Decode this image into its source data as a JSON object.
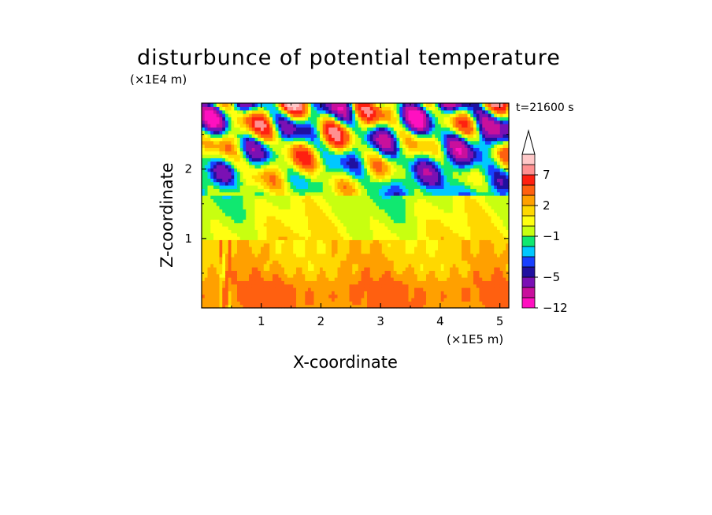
{
  "chart_data": {
    "type": "heatmap",
    "title": "disturbunce of potential temperature",
    "xlabel": "X-coordinate",
    "ylabel": "Z-coordinate",
    "x_unit": "(×1E5 m)",
    "y_unit": "(×1E4 m)",
    "annotation": "t=21600 s",
    "xlim": [
      0,
      5.15
    ],
    "ylim": [
      0,
      2.95
    ],
    "x_ticks": [
      "1",
      "2",
      "3",
      "4",
      "5"
    ],
    "y_ticks": [
      "1",
      "2"
    ],
    "colorbar": {
      "levels": [
        -12,
        -9,
        -7,
        -5,
        -4,
        -3,
        -2,
        -1,
        0,
        1,
        2,
        3,
        5,
        7,
        9,
        11
      ],
      "labels": [
        "−12",
        "−5",
        "−1",
        "2",
        "7"
      ],
      "colors": [
        "#ff10c0",
        "#c8109c",
        "#7a10b4",
        "#2010a0",
        "#1840ff",
        "#00c8ff",
        "#10e870",
        "#c8ff10",
        "#ffff10",
        "#ffd800",
        "#ffa000",
        "#ff6010",
        "#ff2010",
        "#ff9090",
        "#ffc8c8"
      ],
      "extend": "max",
      "max_arrow_color": "#ffffff"
    },
    "field": {
      "description_layers": [
        {
          "z_range": [
            0,
            1.0
          ],
          "typical_value": 2.5,
          "range": [
            0.5,
            5
          ]
        },
        {
          "z_range": [
            1.0,
            1.6
          ],
          "typical_value": 0.5,
          "range": [
            -1,
            2
          ]
        },
        {
          "z_range": [
            1.6,
            2.95
          ],
          "typical_value": 0,
          "range": [
            -12,
            9
          ]
        }
      ]
    }
  }
}
